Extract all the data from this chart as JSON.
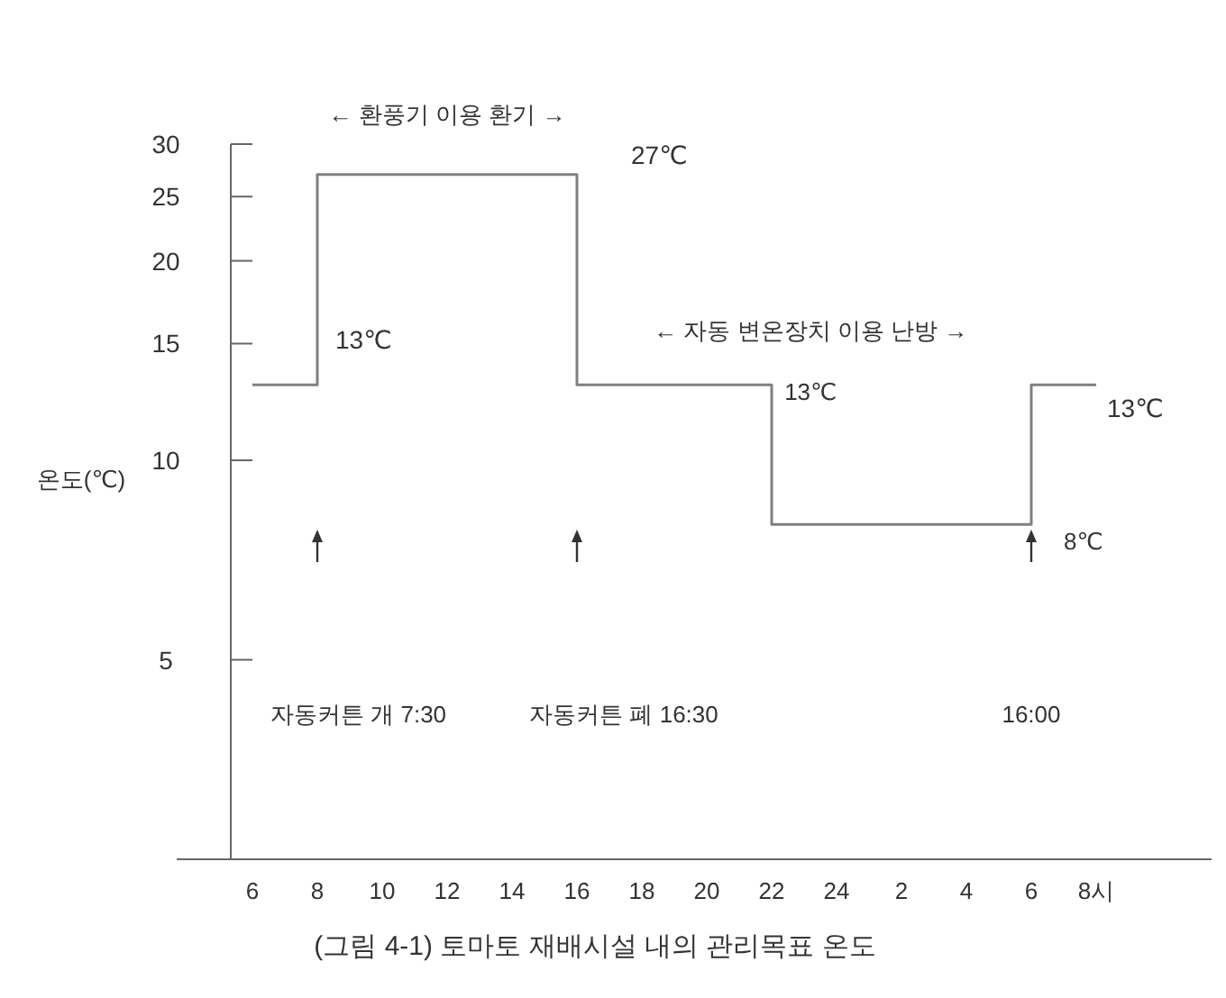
{
  "chart_data": {
    "type": "step",
    "title": "(그림 4-1) 토마토 재배시설 내의 관리목표 온도",
    "ylabel": "온도(℃)",
    "categories": [
      "6",
      "8",
      "10",
      "12",
      "14",
      "16",
      "18",
      "20",
      "22",
      "24",
      "2",
      "4",
      "6",
      "8시"
    ],
    "series": [
      {
        "color": "#808080",
        "values": [
          13,
          27,
          27,
          27,
          27,
          13,
          13,
          13,
          8,
          8,
          8,
          8,
          13,
          13
        ]
      }
    ],
    "line_style": "solid",
    "log": true,
    "ylim": [
      2.5,
      30
    ],
    "yticks": [
      5,
      10,
      15,
      20,
      25,
      30
    ],
    "annotations": [
      "← 환풍기 이용 환기 →",
      {
        "text": "27℃",
        "x": "16",
        "y": 27
      },
      {
        "text": "13℃",
        "x": "8",
        "y": 13
      },
      "← 자동 변온장치 이용 난방 →",
      "13℃",
      {
        "text": "13℃",
        "x": "8시",
        "y": 13
      },
      "8℃",
      "자동커튼 개 7:30",
      "자동커튼 폐 16:30",
      "16:00"
    ]
  }
}
